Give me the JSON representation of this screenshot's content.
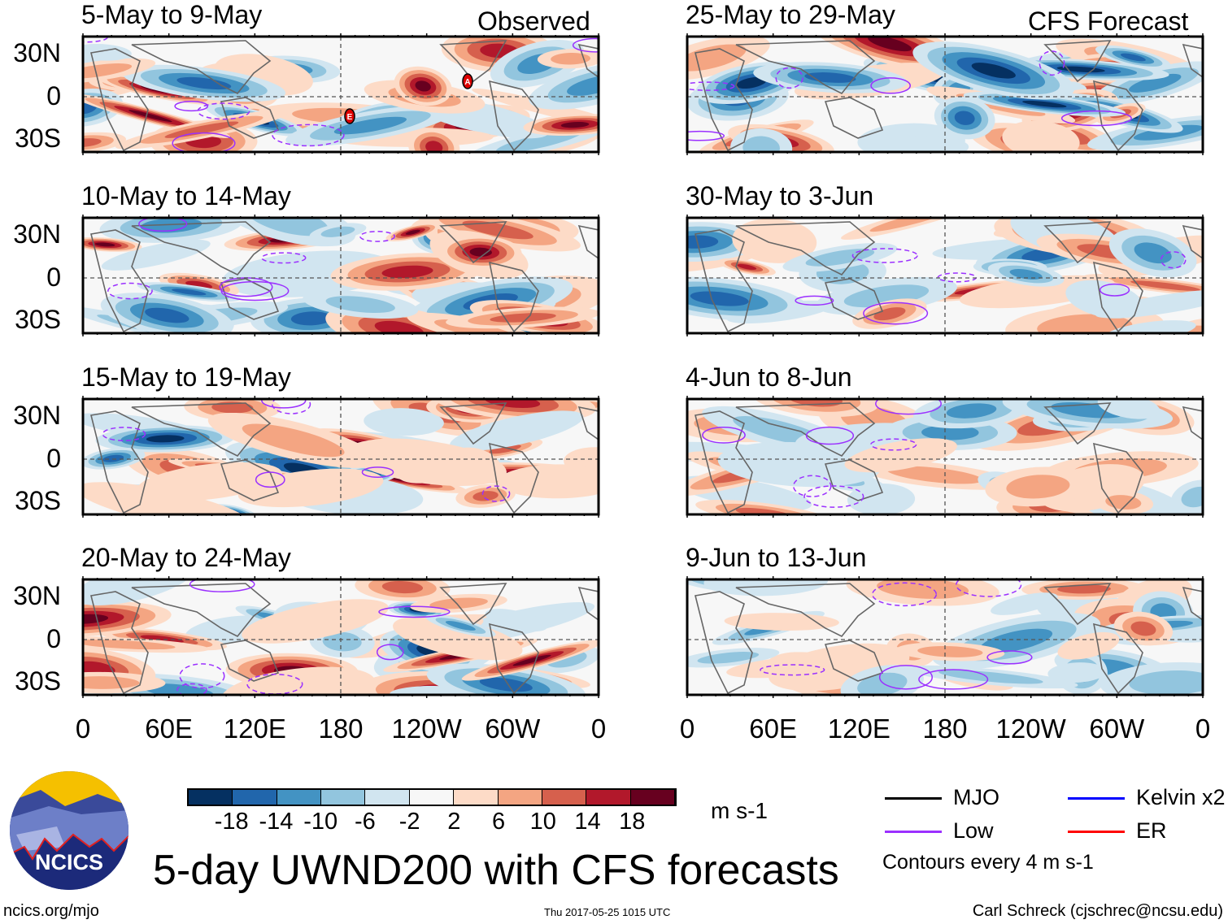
{
  "column_headers": {
    "left": "Observed",
    "right": "CFS Forecast"
  },
  "panels": [
    {
      "title": "5-May to 9-May",
      "column": "left",
      "storms": [
        "A",
        "E"
      ]
    },
    {
      "title": "10-May to 14-May",
      "column": "left"
    },
    {
      "title": "15-May to 19-May",
      "column": "left"
    },
    {
      "title": "20-May to 24-May",
      "column": "left"
    },
    {
      "title": "25-May to 29-May",
      "column": "right"
    },
    {
      "title": "30-May to 3-Jun",
      "column": "right"
    },
    {
      "title": "4-Jun to 8-Jun",
      "column": "right"
    },
    {
      "title": "9-Jun to 13-Jun",
      "column": "right"
    }
  ],
  "chart_data": {
    "type": "heatmap",
    "title": "5-day UWND200 with CFS forecasts",
    "y_ticks": [
      "30N",
      "0",
      "30S"
    ],
    "x_ticks": [
      "0",
      "60E",
      "120E",
      "180",
      "120W",
      "60W",
      "0"
    ],
    "colorbar": {
      "units": "m s-1",
      "ticks": [
        "-18",
        "-14",
        "-10",
        "-6",
        "-2",
        "2",
        "6",
        "10",
        "14",
        "18"
      ],
      "colors": [
        "#053061",
        "#2166ac",
        "#4393c3",
        "#92c5de",
        "#d1e5f0",
        "#f7f7f7",
        "#fddbc7",
        "#f4a582",
        "#d6604d",
        "#b2182b",
        "#67001f"
      ]
    },
    "legend": [
      {
        "label": "MJO",
        "color": "#000000"
      },
      {
        "label": "Kelvin x2",
        "color": "#0000ff"
      },
      {
        "label": "Low",
        "color": "#9b30ff"
      },
      {
        "label": "ER",
        "color": "#ff0000"
      }
    ],
    "contour_note": "Contours every 4 m s-1"
  },
  "logo": {
    "text": "NCICS"
  },
  "footer": {
    "url": "ncics.org/mjo",
    "timestamp": "Thu 2017-05-25 1015 UTC",
    "author": "Carl Schreck (cjschrec@ncsu.edu)"
  }
}
